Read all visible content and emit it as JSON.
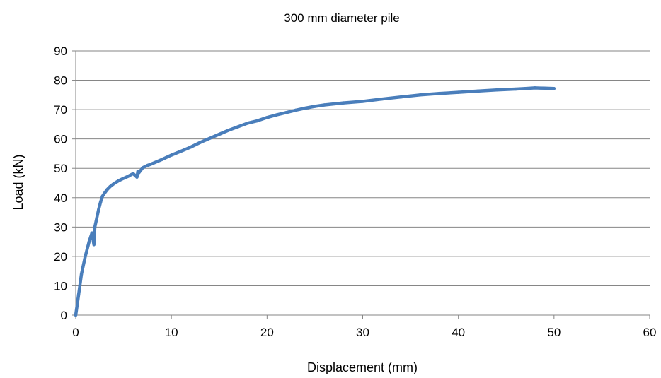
{
  "chart_data": {
    "type": "line",
    "title": "300 mm diameter pile",
    "xlabel": "Displacement (mm)",
    "ylabel": "Load (kN)",
    "xlim": [
      0,
      60
    ],
    "ylim": [
      0,
      90
    ],
    "x_ticks": [
      "0",
      "10",
      "20",
      "30",
      "40",
      "50",
      "60"
    ],
    "y_ticks": [
      "0",
      "10",
      "20",
      "30",
      "40",
      "50",
      "60",
      "70",
      "80",
      "90"
    ],
    "grid": "horizontal",
    "legend": "none",
    "colors": {
      "series": "#4a7ebb",
      "grid": "#868686",
      "axis": "#868686"
    },
    "series": [
      {
        "x": [
          0,
          0.3,
          0.6,
          1.0,
          1.4,
          1.7,
          1.9,
          2.0,
          2.2,
          2.4,
          2.6,
          2.8,
          3.0,
          3.3,
          3.6,
          4.0,
          4.5,
          5.0,
          5.5,
          6.0,
          6.4,
          6.5,
          6.6,
          6.8,
          7.0,
          7.5,
          8.0,
          9.0,
          10.0,
          11.0,
          12.0,
          13.0,
          14.0,
          15.0,
          16.0,
          17.0,
          18.0,
          19.0,
          20.0,
          21.0,
          22.0,
          23.0,
          24.0,
          25.0,
          26.0,
          28.0,
          30.0,
          32.0,
          34.0,
          36.0,
          38.0,
          40.0,
          42.0,
          44.0,
          46.0,
          47.0,
          48.0,
          49.0,
          50.0
        ],
        "y": [
          0,
          7,
          14,
          20,
          25,
          28,
          24,
          30,
          33,
          36,
          38.5,
          40.5,
          41.5,
          42.8,
          43.8,
          44.8,
          45.8,
          46.6,
          47.3,
          48.2,
          47,
          49,
          48.5,
          49.3,
          50.2,
          51.0,
          51.6,
          53.0,
          54.5,
          55.8,
          57.2,
          58.8,
          60.2,
          61.6,
          63.0,
          64.2,
          65.4,
          66.2,
          67.3,
          68.2,
          69.0,
          69.8,
          70.5,
          71.1,
          71.6,
          72.3,
          72.8,
          73.6,
          74.3,
          75.0,
          75.5,
          75.9,
          76.3,
          76.7,
          77.0,
          77.2,
          77.4,
          77.3,
          77.2
        ]
      }
    ]
  }
}
